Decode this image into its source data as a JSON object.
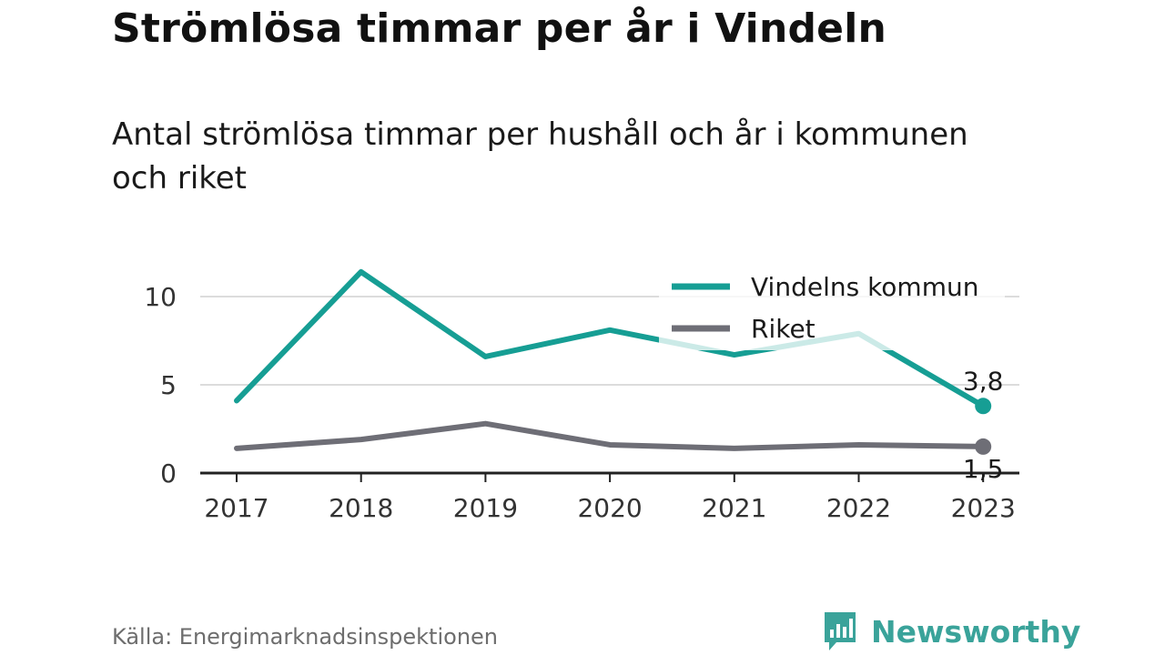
{
  "title": "Strömlösa timmar per år i Vindeln",
  "subtitle": "Antal strömlösa timmar per hushåll och år i kommunen och riket",
  "source": "Källa: Energimarknadsinspektionen",
  "brand": {
    "name": "Newsworthy",
    "icon": "bar-chart-speech-bubble-icon"
  },
  "colors": {
    "kommun": "#169e94",
    "riket": "#6e6e76",
    "grid": "#dcdcdc",
    "axis": "#222222"
  },
  "chart_data": {
    "type": "line",
    "title": "Strömlösa timmar per år i Vindeln",
    "subtitle": "Antal strömlösa timmar per hushåll och år i kommunen och riket",
    "categories": [
      "2017",
      "2018",
      "2019",
      "2020",
      "2021",
      "2022",
      "2023"
    ],
    "series": [
      {
        "name": "Vindelns kommun",
        "values": [
          4.1,
          11.4,
          6.6,
          8.1,
          6.7,
          7.9,
          3.8
        ]
      },
      {
        "name": "Riket",
        "values": [
          1.4,
          1.9,
          2.8,
          1.6,
          1.4,
          1.6,
          1.5
        ]
      }
    ],
    "yticks": [
      0,
      5,
      10
    ],
    "ylim": [
      0,
      12
    ],
    "end_labels": [
      "3,8",
      "1,5"
    ],
    "legend": "top-right",
    "grid": true
  }
}
